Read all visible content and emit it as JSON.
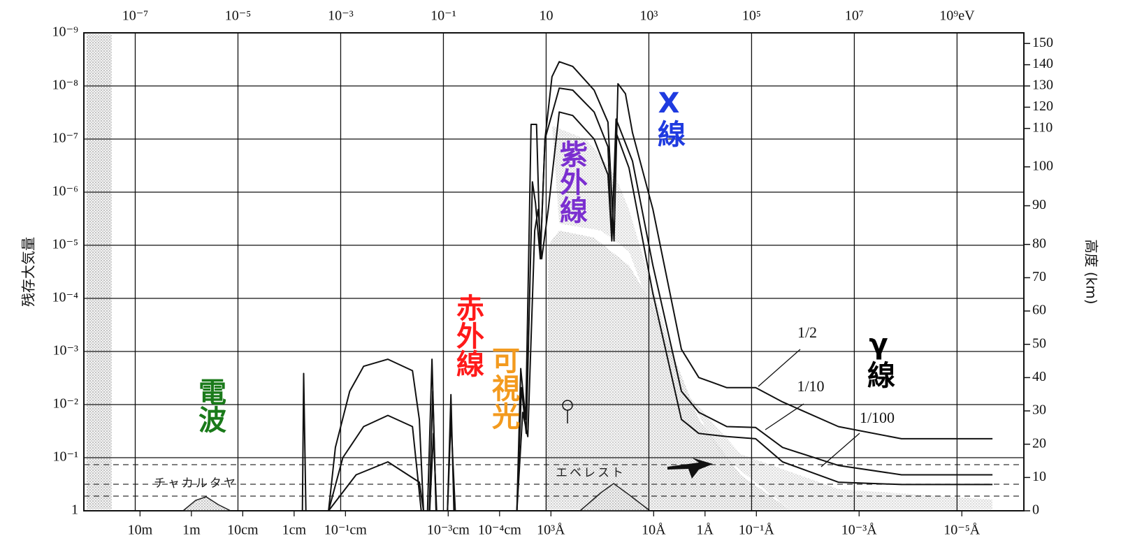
{
  "chart_data": {
    "type": "line",
    "xscale": "log",
    "yscale": "log",
    "xlim": [
      1e-08,
      20000000000.0
    ],
    "xticks": [
      {
        "value": 1e-07,
        "label": "10⁻⁷"
      },
      {
        "value": 1e-05,
        "label": "10⁻⁵"
      },
      {
        "value": 0.001,
        "label": "10⁻³"
      },
      {
        "value": 0.1,
        "label": "10⁻¹"
      },
      10,
      {
        "value": 1000,
        "label": "10³"
      },
      {
        "value": 100000,
        "label": "10⁵"
      },
      {
        "value": 10000000,
        "label": "10⁷"
      },
      {
        "value": 1000000000,
        "label": "10⁹eV"
      }
    ],
    "x2lim": [
      124,
      6.2e-17
    ],
    "x2ticks": [
      {
        "value": 10,
        "label": "10m"
      },
      {
        "value": 1,
        "label": "1m"
      },
      {
        "value": 0.1,
        "label": "10cm"
      },
      {
        "value": 0.01,
        "label": "1cm"
      },
      {
        "value": 0.001,
        "label": "10⁻¹cm"
      },
      {
        "value": 1e-05,
        "label": "10⁻³cm"
      },
      {
        "value": 1e-06,
        "label": "10⁻⁴cm"
      },
      {
        "value": 1e-07,
        "label": "10³Å"
      },
      {
        "value": 1e-09,
        "label": "10Å"
      },
      {
        "value": 1e-10,
        "label": "1Å"
      },
      {
        "value": 1e-11,
        "label": "10⁻¹Å"
      },
      {
        "value": 1e-13,
        "label": "10⁻³Å"
      },
      {
        "value": 1e-15,
        "label": "10⁻⁵Å"
      }
    ],
    "ylabel": "残存大気量",
    "ylim": [
      1,
      1e-09
    ],
    "yticks": [
      {
        "value": 1e-09,
        "label": "10⁻⁹"
      },
      {
        "value": 1e-08,
        "label": "10⁻⁸"
      },
      {
        "value": 1e-07,
        "label": "10⁻⁷"
      },
      {
        "value": 1e-06,
        "label": "10⁻⁶"
      },
      {
        "value": 1e-05,
        "label": "10⁻⁵"
      },
      {
        "value": 0.0001,
        "label": "10⁻⁴"
      },
      {
        "value": 0.001,
        "label": "10⁻³"
      },
      {
        "value": 0.01,
        "label": "10⁻²"
      },
      {
        "value": 0.1,
        "label": "10⁻¹"
      },
      1
    ],
    "y2label": "高度 (km)",
    "y2lim": [
      0,
      150
    ],
    "y2ticks": [
      0,
      10,
      20,
      30,
      40,
      50,
      60,
      70,
      80,
      90,
      100,
      110,
      120,
      130,
      140,
      150
    ],
    "grid": true,
    "series": [
      {
        "name": "1/2",
        "color": "#111111",
        "x": [
          0.00018,
          0.00019,
          0.00021,
          null,
          0.00058,
          0.00079,
          0.0015,
          0.0028,
          0.0083,
          0.025,
          0.034,
          0.041,
          null,
          0.049,
          0.06,
          0.072,
          null,
          0.12,
          0.14,
          0.16,
          null,
          2.7,
          3.2,
          4.0,
          5.1,
          6.5,
          7.7,
          9.5,
          13,
          18,
          33,
          86,
          160,
          210,
          250,
          350,
          480,
          1200,
          4300,
          9400,
          33000,
          120000,
          400000,
          4900000,
          83000000,
          4900000000
        ],
        "values": [
          1,
          0.0026,
          1,
          null,
          1,
          0.064,
          0.0056,
          0.0019,
          0.0014,
          0.0023,
          0.019,
          1,
          null,
          1,
          0.0014,
          1,
          null,
          1,
          0.0065,
          1,
          null,
          1,
          0.0021,
          0.019,
          5.3e-08,
          5.3e-08,
          1.7e-05,
          1e-07,
          6.7e-09,
          3.5e-09,
          4.3e-09,
          1.2e-08,
          4.8e-08,
          8.3e-06,
          9.1e-09,
          1.4e-08,
          7.6e-08,
          2.1e-06,
          0.00091,
          0.0031,
          0.0048,
          0.0048,
          0.0089,
          0.026,
          0.044,
          0.044
        ]
      },
      {
        "name": "1/10",
        "color": "#111111",
        "x": [
          0.00058,
          0.0011,
          0.0028,
          0.0083,
          0.025,
          0.037,
          null,
          0.053,
          0.062,
          0.072,
          null,
          0.12,
          0.14,
          0.17,
          null,
          2.7,
          3.3,
          4.1,
          5.4,
          6.2,
          7.7,
          9.5,
          18,
          33,
          86,
          160,
          190,
          230,
          480,
          1200,
          4300,
          9400,
          33000,
          120000,
          400000,
          4900000,
          83000000,
          4900000000
        ],
        "values": [
          1,
          0.1,
          0.026,
          0.016,
          0.026,
          1,
          null,
          1,
          0.0056,
          1,
          null,
          1,
          0.019,
          1,
          null,
          1,
          0.0048,
          0.035,
          6.4e-07,
          1.6e-06,
          1.8e-05,
          1e-07,
          1.1e-08,
          1.2e-08,
          3.1e-08,
          1.4e-07,
          7.2e-06,
          4.2e-08,
          2.6e-07,
          2.4e-05,
          0.0056,
          0.014,
          0.026,
          0.027,
          0.064,
          0.14,
          0.21,
          0.21
        ]
      },
      {
        "name": "1/100",
        "color": "#111111",
        "x": [
          0.00058,
          0.002,
          0.0083,
          0.034,
          0.041,
          null,
          0.054,
          0.064,
          0.074,
          null,
          2.7,
          3.5,
          4.4,
          6.0,
          7.0,
          8.2,
          11,
          18,
          33,
          86,
          160,
          190,
          230,
          410,
          1200,
          4300,
          9400,
          33000,
          120000,
          400000,
          4900000,
          83000000,
          4900000000
        ],
        "values": [
          1,
          0.21,
          0.12,
          0.29,
          1,
          null,
          1,
          0.035,
          1,
          null,
          1,
          0.014,
          0.04,
          5.3e-06,
          2.1e-06,
          1.8e-05,
          2.1e-06,
          3.1e-08,
          3.6e-08,
          1e-07,
          4.7e-07,
          8.3e-06,
          7.6e-08,
          3.5e-07,
          8.1e-05,
          0.019,
          0.035,
          0.04,
          0.044,
          0.12,
          0.29,
          0.32,
          0.32
        ]
      }
    ],
    "annotations": [
      {
        "text": "電波",
        "color": "#1a7a1a"
      },
      {
        "text": "赤外線",
        "color": "#ff1a1a"
      },
      {
        "text": "可視光",
        "color": "#f39a1e"
      },
      {
        "text": "紫外線",
        "color": "#7b2fd0"
      },
      {
        "text": "X線",
        "color": "#1f3be0"
      },
      {
        "text": "γ線",
        "color": "#000000"
      },
      {
        "text": "チャカルタヤ",
        "color": "#222222"
      },
      {
        "text": "エベレスト",
        "color": "#222222"
      }
    ]
  }
}
